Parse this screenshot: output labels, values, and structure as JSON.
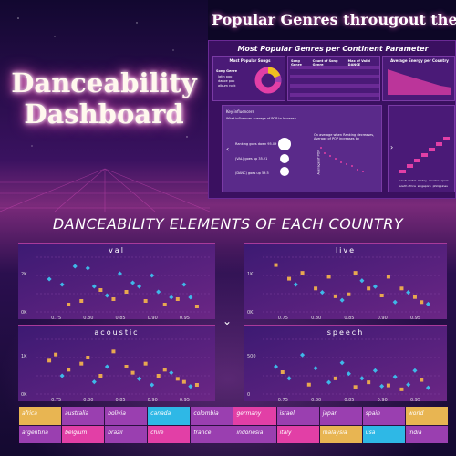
{
  "header": {
    "title_line1": "Danceability",
    "title_line2": "Dashboard",
    "banner": "Popular Genres througout the"
  },
  "report": {
    "title": "Most Popular Genres per Continent Parameter",
    "donut_title": "Most Popular Songs",
    "legend_title": "Song Genre",
    "legend_items": [
      "latin pop",
      "dance pop",
      "album rock"
    ],
    "table_headers": [
      "Song Genre",
      "Count of Song Genre",
      "Max of Valid DANCE"
    ],
    "energy_title": "Average Energy per Country",
    "energy_legend": [
      "Country",
      "Indonesia",
      "Japan",
      "Ma"
    ],
    "influencers_title": "Key influencers",
    "influencers_subtitle": "What influences Average of POP to",
    "influencers_value": "Increase",
    "influencers_items": [
      "Ranking goes down 95.09",
      "(VAL) goes up 35.21",
      "(DANC) goes up 59.5"
    ],
    "scatter_caption": "On average when Ranking decreases, Average of POP increases by",
    "scatter_ylabel": "Average of POP",
    "energy_categories": [
      "saudi arabia",
      "turkey",
      "sweden",
      "spain",
      "south africa",
      "singapore",
      "philippines"
    ]
  },
  "section_title": "DANCEABILITY ELEMENTS OF EACH COUNTRY",
  "panels": {
    "val": {
      "title": "val"
    },
    "live": {
      "title": "live"
    },
    "acoustic": {
      "title": "acoustic"
    },
    "speech": {
      "title": "speech"
    }
  },
  "colors": {
    "accent_pink": "#e23fa6",
    "marker_cyan": "#3fb8e8",
    "marker_orange": "#e8a850",
    "page_bg": "#1b0c33"
  },
  "chart_data": [
    {
      "type": "scatter",
      "title": "val",
      "xticks": [
        "0.75",
        "0.80",
        "0.85",
        "0.90",
        "0.95"
      ],
      "yticks": [
        "0K",
        "2K"
      ],
      "xlim": [
        0.72,
        0.99
      ],
      "ylim": [
        0,
        3000
      ],
      "series": [
        {
          "name": "",
          "color": "#3fb8e8",
          "x": [
            0.74,
            0.76,
            0.78,
            0.8,
            0.81,
            0.83,
            0.85,
            0.87,
            0.88,
            0.9,
            0.91,
            0.93,
            0.95,
            0.96
          ],
          "y": [
            1800,
            1500,
            2500,
            2400,
            1400,
            900,
            2100,
            1600,
            1400,
            2000,
            1100,
            800,
            1500,
            800
          ]
        },
        {
          "name": "",
          "color": "#e8a850",
          "x": [
            0.77,
            0.79,
            0.82,
            0.84,
            0.86,
            0.89,
            0.92,
            0.94,
            0.97
          ],
          "y": [
            400,
            600,
            1200,
            700,
            1100,
            600,
            400,
            700,
            300
          ]
        }
      ]
    },
    {
      "type": "scatter",
      "title": "live",
      "xticks": [
        "0.75",
        "0.80",
        "0.85",
        "0.90",
        "0.95"
      ],
      "yticks": [
        "0K",
        "1K"
      ],
      "xlim": [
        0.72,
        0.99
      ],
      "ylim": [
        0,
        1400
      ],
      "series": [
        {
          "name": "",
          "color": "#e8a850",
          "x": [
            0.74,
            0.76,
            0.78,
            0.8,
            0.82,
            0.83,
            0.85,
            0.86,
            0.88,
            0.9,
            0.91,
            0.93,
            0.95,
            0.96
          ],
          "y": [
            1200,
            850,
            1000,
            600,
            900,
            400,
            450,
            1000,
            600,
            420,
            900,
            600,
            380,
            250
          ]
        },
        {
          "name": "",
          "color": "#3fb8e8",
          "x": [
            0.77,
            0.81,
            0.84,
            0.87,
            0.89,
            0.92,
            0.94,
            0.97
          ],
          "y": [
            700,
            500,
            300,
            800,
            650,
            250,
            500,
            200
          ]
        }
      ]
    },
    {
      "type": "scatter",
      "title": "acoustic",
      "xticks": [
        "0.75",
        "0.80",
        "0.85",
        "0.90",
        "0.95"
      ],
      "yticks": [
        "0K",
        "1K"
      ],
      "xlim": [
        0.72,
        0.99
      ],
      "ylim": [
        0,
        1800
      ],
      "series": [
        {
          "name": "",
          "color": "#e8a850",
          "x": [
            0.74,
            0.75,
            0.77,
            0.79,
            0.8,
            0.82,
            0.84,
            0.86,
            0.87,
            0.89,
            0.91,
            0.92,
            0.94,
            0.95,
            0.97
          ],
          "y": [
            1100,
            1300,
            800,
            1000,
            1200,
            600,
            1400,
            900,
            700,
            1000,
            600,
            800,
            500,
            400,
            300
          ]
        },
        {
          "name": "",
          "color": "#3fb8e8",
          "x": [
            0.76,
            0.81,
            0.83,
            0.88,
            0.9,
            0.93,
            0.96
          ],
          "y": [
            600,
            400,
            900,
            500,
            300,
            700,
            250
          ]
        }
      ]
    },
    {
      "type": "scatter",
      "title": "speech",
      "xticks": [
        "0.75",
        "0.80",
        "0.85",
        "0.90",
        "0.95"
      ],
      "yticks": [
        "0",
        "500"
      ],
      "xlim": [
        0.72,
        0.99
      ],
      "ylim": [
        0,
        700
      ],
      "series": [
        {
          "name": "",
          "color": "#3fb8e8",
          "x": [
            0.74,
            0.76,
            0.78,
            0.8,
            0.82,
            0.84,
            0.85,
            0.87,
            0.89,
            0.9,
            0.92,
            0.94,
            0.95,
            0.97
          ],
          "y": [
            350,
            200,
            500,
            330,
            150,
            400,
            260,
            200,
            300,
            100,
            220,
            120,
            300,
            80
          ]
        },
        {
          "name": "",
          "color": "#e8a850",
          "x": [
            0.75,
            0.79,
            0.83,
            0.86,
            0.88,
            0.91,
            0.93,
            0.96
          ],
          "y": [
            280,
            120,
            200,
            90,
            150,
            110,
            60,
            180
          ]
        }
      ]
    }
  ],
  "countries": {
    "row1": [
      {
        "label": "africa",
        "color": "#e8b552"
      },
      {
        "label": "australia",
        "color": "#9a3fb0"
      },
      {
        "label": "bolivia",
        "color": "#9a3fb0"
      },
      {
        "label": "canada",
        "color": "#2eb8e6"
      },
      {
        "label": "colombia",
        "color": "#9a3fb0"
      },
      {
        "label": "germany",
        "color": "#e23fa6"
      },
      {
        "label": "israel",
        "color": "#9a3fb0"
      },
      {
        "label": "japan",
        "color": "#9a3fb0"
      },
      {
        "label": "spain",
        "color": "#9a3fb0"
      },
      {
        "label": "world",
        "color": "#e8b552"
      }
    ],
    "row2": [
      {
        "label": "argentina",
        "color": "#9a3fb0"
      },
      {
        "label": "belgium",
        "color": "#e23fa6"
      },
      {
        "label": "brazil",
        "color": "#9a3fb0"
      },
      {
        "label": "chile",
        "color": "#e23fa6"
      },
      {
        "label": "france",
        "color": "#9a3fb0"
      },
      {
        "label": "indonesia",
        "color": "#9a3fb0"
      },
      {
        "label": "italy",
        "color": "#e23fa6"
      },
      {
        "label": "malaysia",
        "color": "#e8b552"
      },
      {
        "label": "usa",
        "color": "#2eb8e6"
      },
      {
        "label": "india",
        "color": "#9a3fb0"
      }
    ]
  }
}
